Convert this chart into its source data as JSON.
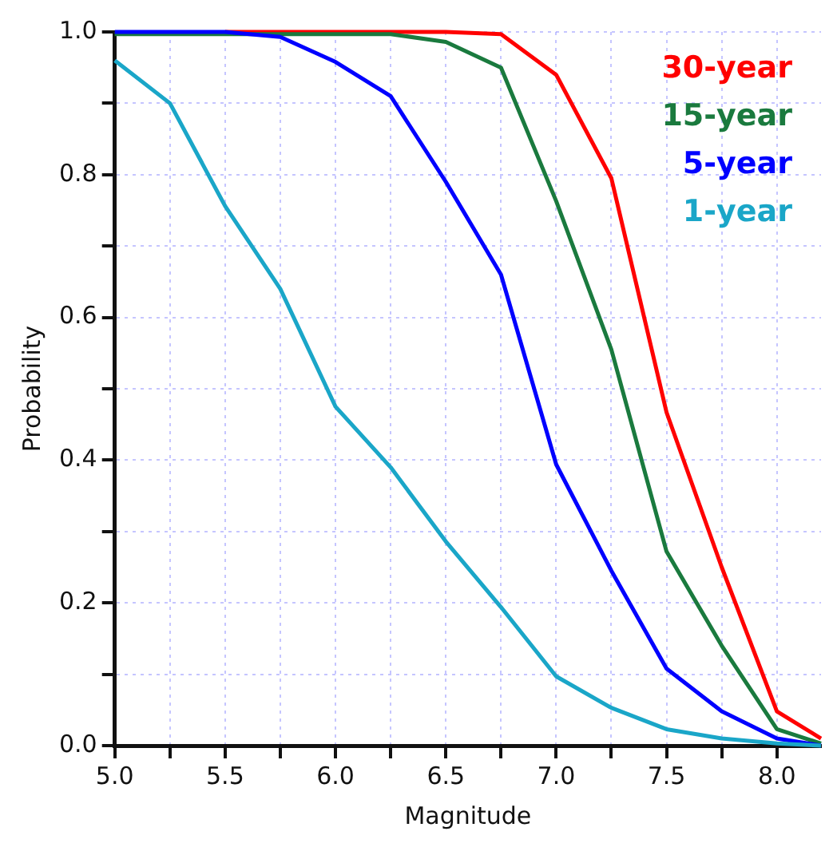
{
  "chart_data": {
    "type": "line",
    "xlabel": "Magnitude",
    "ylabel": "Probability",
    "x": [
      5.0,
      5.25,
      5.5,
      5.75,
      6.0,
      6.25,
      6.5,
      6.75,
      7.0,
      7.25,
      7.5,
      7.75,
      8.0,
      8.2
    ],
    "series": [
      {
        "name": "30-year",
        "color": "#ff0000",
        "values": [
          null,
          null,
          1.0,
          1.0,
          1.0,
          1.0,
          1.0,
          0.997,
          0.94,
          0.795,
          0.467,
          0.25,
          0.048,
          0.01
        ]
      },
      {
        "name": "15-year",
        "color": "#1a7a3e",
        "values": [
          0.997,
          0.997,
          0.997,
          0.997,
          0.997,
          0.997,
          0.986,
          0.95,
          0.763,
          0.555,
          0.272,
          0.14,
          0.023,
          0.003
        ]
      },
      {
        "name": "5-year",
        "color": "#0000ff",
        "values": [
          1.0,
          1.0,
          1.0,
          0.993,
          0.958,
          0.91,
          0.79,
          0.66,
          0.394,
          0.245,
          0.108,
          0.048,
          0.01,
          0.0
        ]
      },
      {
        "name": "1-year",
        "color": "#1aa6c8",
        "values": [
          0.96,
          0.9,
          0.756,
          0.64,
          0.475,
          0.39,
          0.286,
          0.194,
          0.097,
          0.053,
          0.023,
          0.01,
          0.003,
          0.0
        ]
      }
    ],
    "xlim": [
      5.0,
      8.2
    ],
    "xticks": [
      {
        "value": 5,
        "label": "5.0"
      },
      {
        "value": 5.25,
        "label": null
      },
      5.5,
      {
        "value": 5.75,
        "label": null
      },
      {
        "value": 6,
        "label": "6.0"
      },
      {
        "value": 6.25,
        "label": null
      },
      6.5,
      {
        "value": 6.75,
        "label": null
      },
      {
        "value": 7,
        "label": "7.0"
      },
      {
        "value": 7.25,
        "label": null
      },
      7.5,
      {
        "value": 7.75,
        "label": null
      },
      {
        "value": 8,
        "label": "8.0"
      }
    ],
    "ylim": [
      0.0,
      1.0
    ],
    "yticks": [
      {
        "value": 0,
        "label": "0.0"
      },
      {
        "value": 0.1,
        "label": null
      },
      0.2,
      {
        "value": 0.3,
        "label": null
      },
      0.4,
      {
        "value": 0.5,
        "label": null
      },
      0.6,
      {
        "value": 0.7,
        "label": null
      },
      0.8,
      {
        "value": 0.9,
        "label": null
      },
      {
        "value": 1,
        "label": "1.0"
      }
    ],
    "grid": true,
    "legend": "top right",
    "marker": "none",
    "line_style": "solid"
  }
}
